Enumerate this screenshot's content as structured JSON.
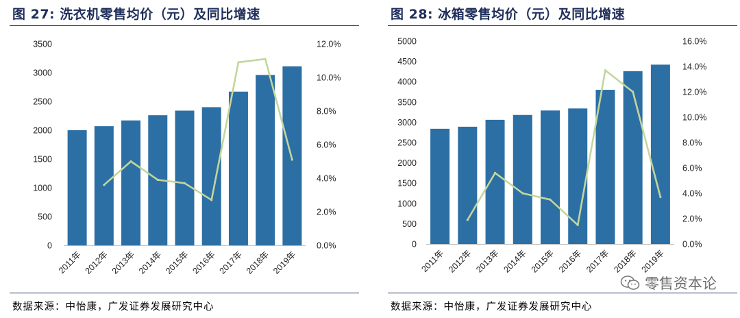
{
  "charts": [
    {
      "figure_title": "图 27: 洗衣机零售均价（元）及同比增速",
      "source": "数据来源：中怡康，广发证券发展研究中心"
    },
    {
      "figure_title": "图 28: 冰箱零售均价（元）及同比增速",
      "source": "数据来源：中怡康，广发证券发展研究中心"
    }
  ],
  "watermark": {
    "text": "零售资本论",
    "icon": "wechat-icon"
  },
  "colors": {
    "bar": "#2c6fa5",
    "line": "#c3d69b",
    "title": "#1f2e5a"
  },
  "chart_data": [
    {
      "type": "bar",
      "title": "洗衣机零售均价（元）及同比增速",
      "categories": [
        "2011年",
        "2012年",
        "2013年",
        "2014年",
        "2015年",
        "2016年",
        "2017年",
        "2018年",
        "2019年"
      ],
      "series": [
        {
          "name": "零售均价（元）",
          "type": "bar",
          "axis": "left",
          "values": [
            2000,
            2070,
            2170,
            2260,
            2340,
            2400,
            2670,
            2960,
            3110
          ]
        },
        {
          "name": "同比增速",
          "type": "line",
          "axis": "right",
          "values": [
            null,
            3.6,
            5.0,
            3.9,
            3.7,
            2.7,
            10.9,
            11.1,
            5.1
          ]
        }
      ],
      "ylim": [
        0,
        3500
      ],
      "yticks": [
        0,
        500,
        1000,
        1500,
        2000,
        2500,
        3000,
        3500
      ],
      "y2lim": [
        0,
        12
      ],
      "y2ticks": [
        0,
        2,
        4,
        6,
        8,
        10,
        12
      ],
      "y2tick_labels": [
        "0.0%",
        "2.0%",
        "4.0%",
        "6.0%",
        "8.0%",
        "10.0%",
        "12.0%"
      ],
      "grid": false
    },
    {
      "type": "bar",
      "title": "冰箱零售均价（元）及同比增速",
      "categories": [
        "2011年",
        "2012年",
        "2013年",
        "2014年",
        "2015年",
        "2016年",
        "2017年",
        "2018年",
        "2019年"
      ],
      "series": [
        {
          "name": "零售均价（元）",
          "type": "bar",
          "axis": "left",
          "values": [
            2840,
            2890,
            3060,
            3180,
            3290,
            3340,
            3800,
            4260,
            4420
          ]
        },
        {
          "name": "同比增速",
          "type": "line",
          "axis": "right",
          "values": [
            null,
            1.9,
            5.6,
            4.0,
            3.5,
            1.5,
            13.7,
            12.0,
            3.7
          ]
        }
      ],
      "ylim": [
        0,
        5000
      ],
      "yticks": [
        0,
        500,
        1000,
        1500,
        2000,
        2500,
        3000,
        3500,
        4000,
        4500,
        5000
      ],
      "y2lim": [
        0,
        16
      ],
      "y2ticks": [
        0,
        2,
        4,
        6,
        8,
        10,
        12,
        14,
        16
      ],
      "y2tick_labels": [
        "0.0%",
        "2.0%",
        "4.0%",
        "6.0%",
        "8.0%",
        "10.0%",
        "12.0%",
        "14.0%",
        "16.0%"
      ],
      "grid": false
    }
  ]
}
